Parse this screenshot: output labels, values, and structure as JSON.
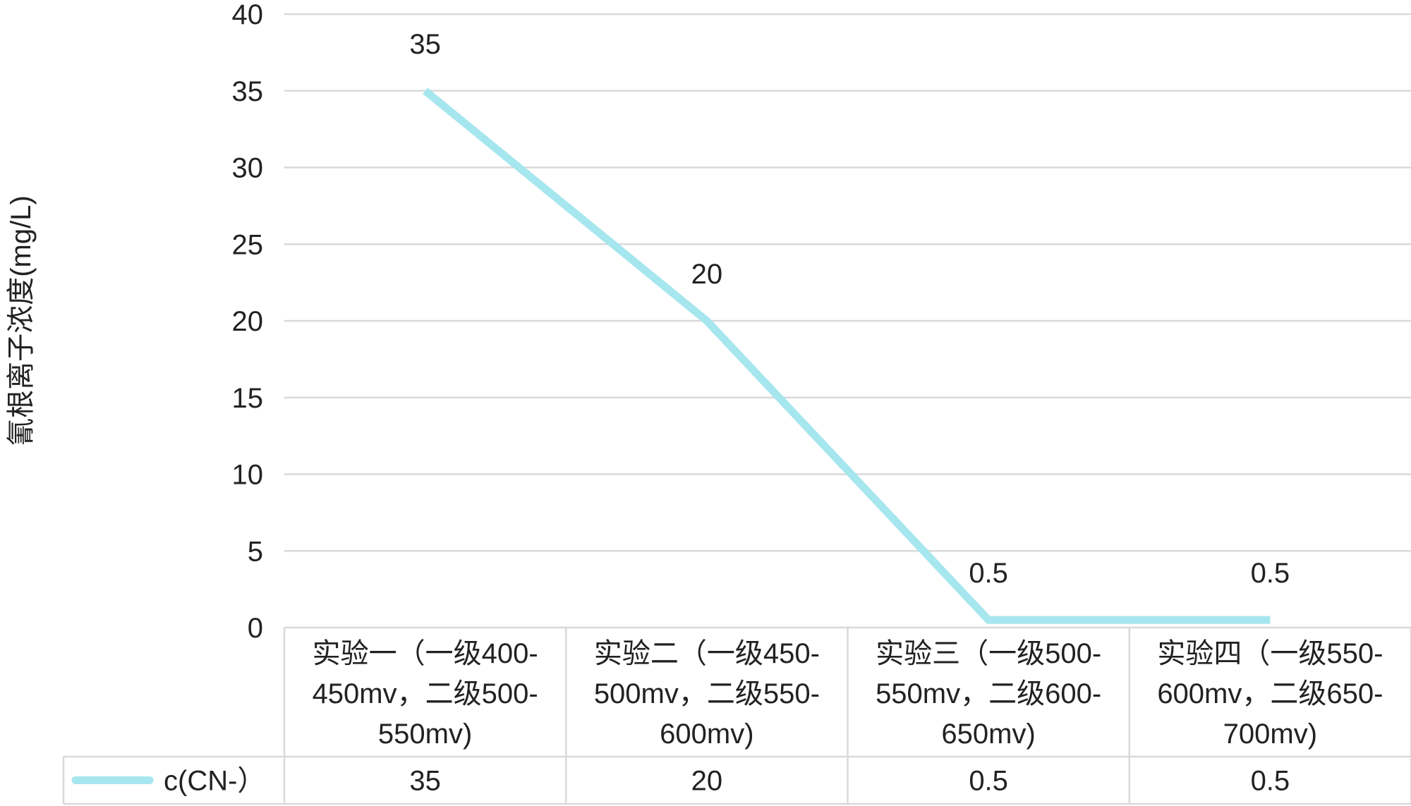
{
  "chart_data": {
    "type": "line",
    "title": "",
    "xlabel": "",
    "ylabel": "氰根离子浓度(mg/L)",
    "ylim": [
      0,
      40
    ],
    "yticks": [
      0,
      5,
      10,
      15,
      20,
      25,
      30,
      35,
      40
    ],
    "grid": true,
    "categories": [
      [
        "实验一（一级400-",
        "450mv，二级500-",
        "550mv)"
      ],
      [
        "实验二（一级450-",
        "500mv，二级550-",
        "600mv)"
      ],
      [
        "实验三（一级500-",
        "550mv，二级600-",
        "650mv)"
      ],
      [
        "实验四（一级550-",
        "600mv，二级650-",
        "700mv)"
      ]
    ],
    "series": [
      {
        "name": "c(CN-）",
        "color": "#a6e6ee",
        "values": [
          35,
          20,
          0.5,
          0.5
        ],
        "data_labels": [
          "35",
          "20",
          "0.5",
          "0.5"
        ]
      }
    ],
    "legend": "data-table"
  }
}
